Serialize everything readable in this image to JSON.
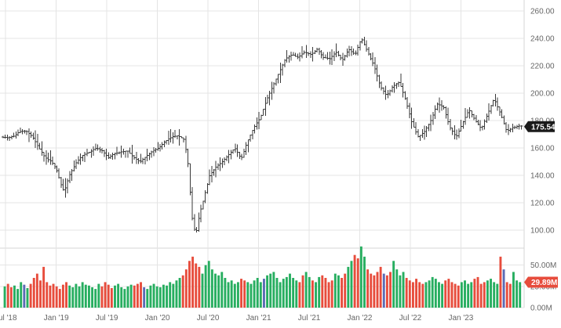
{
  "chart_data": {
    "type": "ohlc-with-volume",
    "title": "",
    "price": {
      "axis_ticks": [
        "260.00",
        "240.00",
        "220.00",
        "200.00",
        "180.00",
        "160.00",
        "140.00",
        "120.00",
        "100.00"
      ],
      "ylim": [
        87,
        265
      ],
      "last_value": "175.54",
      "grid": true,
      "series": [
        [
          0.0,
          168.0
        ],
        [
          0.25,
          167.5
        ],
        [
          0.5,
          168.5
        ],
        [
          0.75,
          172.0
        ],
        [
          1.0,
          172.5
        ],
        [
          1.25,
          168.0
        ],
        [
          1.5,
          160.0
        ],
        [
          1.75,
          153.0
        ],
        [
          2.0,
          150.0
        ],
        [
          2.2,
          144.0
        ],
        [
          2.4,
          132.0
        ],
        [
          2.5,
          128.0
        ],
        [
          2.7,
          140.0
        ],
        [
          3.0,
          150.0
        ],
        [
          3.25,
          155.0
        ],
        [
          3.5,
          157.0
        ],
        [
          3.75,
          160.0
        ],
        [
          4.0,
          158.0
        ],
        [
          4.25,
          153.0
        ],
        [
          4.5,
          156.0
        ],
        [
          5.0,
          158.0
        ],
        [
          5.25,
          153.0
        ],
        [
          5.5,
          150.0
        ],
        [
          5.75,
          154.0
        ],
        [
          6.0,
          158.0
        ],
        [
          6.25,
          160.0
        ],
        [
          6.5,
          165.0
        ],
        [
          6.75,
          168.0
        ],
        [
          7.0,
          169.0
        ],
        [
          7.25,
          166.0
        ],
        [
          7.4,
          148.0
        ],
        [
          7.55,
          110.0
        ],
        [
          7.7,
          96.0
        ],
        [
          7.85,
          112.0
        ],
        [
          8.0,
          122.0
        ],
        [
          8.25,
          140.0
        ],
        [
          8.5,
          146.0
        ],
        [
          8.75,
          150.0
        ],
        [
          9.0,
          155.0
        ],
        [
          9.25,
          160.0
        ],
        [
          9.5,
          152.0
        ],
        [
          9.75,
          165.0
        ],
        [
          10.0,
          175.0
        ],
        [
          10.25,
          182.0
        ],
        [
          10.5,
          195.0
        ],
        [
          10.75,
          205.0
        ],
        [
          11.0,
          215.0
        ],
        [
          11.25,
          225.0
        ],
        [
          11.5,
          228.0
        ],
        [
          11.75,
          226.0
        ],
        [
          12.0,
          230.0
        ],
        [
          12.25,
          228.0
        ],
        [
          12.5,
          232.0
        ],
        [
          12.75,
          226.0
        ],
        [
          13.0,
          225.0
        ],
        [
          13.25,
          230.0
        ],
        [
          13.5,
          224.0
        ],
        [
          13.75,
          232.0
        ],
        [
          14.0,
          228.0
        ],
        [
          14.25,
          240.0
        ],
        [
          14.5,
          230.0
        ],
        [
          14.75,
          220.0
        ],
        [
          15.0,
          205.0
        ],
        [
          15.25,
          198.0
        ],
        [
          15.5,
          205.0
        ],
        [
          15.75,
          208.0
        ],
        [
          16.0,
          195.0
        ],
        [
          16.25,
          178.0
        ],
        [
          16.5,
          168.0
        ],
        [
          16.75,
          172.0
        ],
        [
          17.0,
          180.0
        ],
        [
          17.25,
          192.0
        ],
        [
          17.5,
          190.0
        ],
        [
          17.75,
          175.0
        ],
        [
          18.0,
          168.0
        ],
        [
          18.25,
          178.0
        ],
        [
          18.5,
          188.0
        ],
        [
          18.75,
          180.0
        ],
        [
          19.0,
          174.0
        ],
        [
          19.25,
          185.0
        ],
        [
          19.5,
          196.0
        ],
        [
          19.75,
          185.0
        ],
        [
          20.0,
          172.0
        ],
        [
          20.25,
          175.0
        ],
        [
          20.5,
          176.0
        ]
      ]
    },
    "volume": {
      "axis_ticks": [
        "50.00M",
        "25.00M",
        "0.00M"
      ],
      "ylim": [
        0,
        70
      ],
      "last_value": "29.89M",
      "values": [
        25,
        28,
        24,
        26,
        22,
        30,
        27,
        23,
        28,
        35,
        40,
        32,
        48,
        30,
        26,
        28,
        25,
        22,
        27,
        30,
        26,
        24,
        28,
        25,
        30,
        27,
        26,
        24,
        22,
        28,
        25,
        30,
        27,
        23,
        26,
        28,
        24,
        22,
        25,
        27,
        26,
        28,
        30,
        24,
        22,
        26,
        28,
        25,
        24,
        27,
        26,
        30,
        28,
        32,
        35,
        38,
        45,
        55,
        60,
        52,
        48,
        40,
        50,
        55,
        45,
        40,
        38,
        42,
        35,
        30,
        32,
        28,
        30,
        34,
        32,
        30,
        28,
        32,
        35,
        30,
        34,
        38,
        40,
        42,
        35,
        30,
        34,
        36,
        40,
        35,
        32,
        30,
        38,
        42,
        36,
        32,
        30,
        36,
        38,
        35,
        30,
        32,
        40,
        38,
        35,
        40,
        48,
        55,
        62,
        58,
        72,
        60,
        45,
        40,
        38,
        42,
        48,
        40,
        38,
        42,
        55,
        45,
        38,
        42,
        35,
        32,
        30,
        34,
        30,
        28,
        30,
        32,
        36,
        34,
        30,
        28,
        32,
        34,
        30,
        28,
        26,
        30,
        32,
        28,
        30,
        34,
        36,
        28,
        30,
        32,
        34,
        30,
        28,
        60,
        45,
        30,
        28,
        42,
        32,
        30
      ],
      "colors": {
        "up": "#27ae60",
        "down": "#e74c3c",
        "neutral": "#5b6bb5"
      }
    },
    "x_axis": {
      "ticks": [
        "Jul '18",
        "Jan '19",
        "Jul '19",
        "Jan '20",
        "Jul '20",
        "Jan '21",
        "Jul '21",
        "Jan '22",
        "Jul '22",
        "Jan '23"
      ]
    },
    "colors": {
      "bar": "#3a3a3a",
      "badge": "#1a1a1a",
      "badge_volume": "#e74c3c",
      "grid": "#e4e4e4"
    }
  }
}
